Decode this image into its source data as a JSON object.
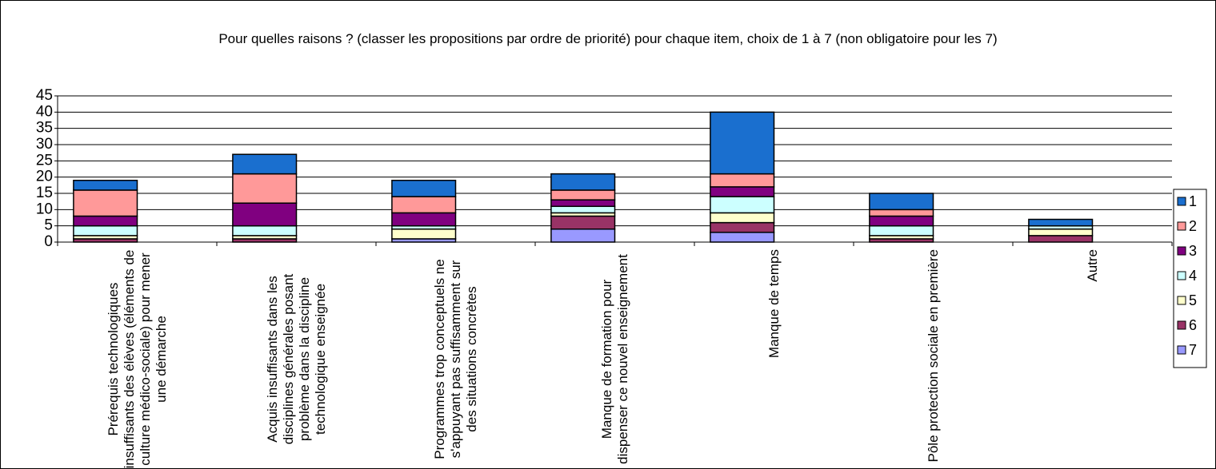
{
  "chart_data": {
    "type": "stacked_bar",
    "title": "Pour quelles raisons ? (classer les propositions par ordre de priorité) pour chaque item, choix de 1 à 7 (non obligatoire pour les 7)",
    "categories": [
      "Prérequis technologiques insuffisants des élèves (éléments de culture médico-sociale) pour mener une démarche",
      "Acquis insuffisants dans les disciplines générales posant problème dans la discipline technologique enseignée",
      "Programmes trop conceptuels ne s'appuyant pas suffisamment sur des situations concrètes",
      "Manque de formation pour dispenser ce nouvel enseignement",
      "Manque de temps",
      "Pôle protection sociale en première",
      "Autre"
    ],
    "series": [
      {
        "name": "7",
        "color": "#9999ff",
        "values": [
          0,
          0,
          1,
          4,
          3,
          0,
          0
        ]
      },
      {
        "name": "6",
        "color": "#993366",
        "values": [
          1,
          1,
          0,
          4,
          3,
          1,
          2
        ]
      },
      {
        "name": "5",
        "color": "#ffffcc",
        "values": [
          1,
          1,
          3,
          1,
          3,
          1,
          2
        ]
      },
      {
        "name": "4",
        "color": "#ccffff",
        "values": [
          3,
          3,
          1,
          2,
          5,
          3,
          1
        ]
      },
      {
        "name": "3",
        "color": "#800080",
        "values": [
          3,
          7,
          4,
          2,
          3,
          3,
          0
        ]
      },
      {
        "name": "2",
        "color": "#ff9999",
        "values": [
          8,
          9,
          5,
          3,
          4,
          2,
          0
        ]
      },
      {
        "name": "1",
        "color": "#1a6fcf",
        "values": [
          3,
          6,
          5,
          5,
          19,
          5,
          2
        ]
      }
    ],
    "ylim": [
      0,
      45
    ],
    "yticks": [
      0,
      5,
      10,
      15,
      20,
      25,
      30,
      35,
      40,
      45
    ],
    "grid": true
  }
}
